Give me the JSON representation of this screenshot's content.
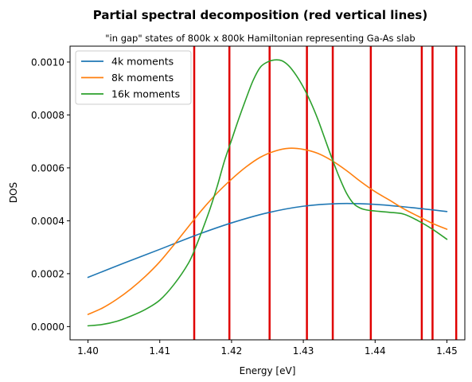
{
  "chart_data": {
    "type": "line",
    "title": "Partial spectral decomposition (red vertical lines)",
    "subtitle": "\"in gap\" states of 800k x 800k Hamiltonian representing Ga-As slab",
    "xlabel": "Energy [eV]",
    "ylabel": "DOS",
    "xlim": [
      1.3975,
      1.4525
    ],
    "ylim": [
      -5e-05,
      0.00106
    ],
    "xticks": [
      1.4,
      1.41,
      1.42,
      1.43,
      1.44,
      1.45
    ],
    "xtick_labels": [
      "1.40",
      "1.41",
      "1.42",
      "1.43",
      "1.44",
      "1.45"
    ],
    "yticks": [
      0,
      0.0002,
      0.0004,
      0.0006,
      0.0008,
      0.001
    ],
    "ytick_labels": [
      "0.0000",
      "0.0002",
      "0.0004",
      "0.0006",
      "0.0008",
      "0.0010"
    ],
    "grid": false,
    "legend_position": "top-left",
    "vertical_lines": {
      "color": "#e00000",
      "x": [
        1.4148,
        1.4197,
        1.4253,
        1.4305,
        1.4341,
        1.4394,
        1.4465,
        1.448,
        1.4513
      ]
    },
    "series": [
      {
        "name": "4k moments",
        "color": "#1f77b4",
        "x": [
          1.4,
          1.405,
          1.41,
          1.415,
          1.42,
          1.425,
          1.43,
          1.435,
          1.44,
          1.445,
          1.45
        ],
        "y": [
          0.000186,
          0.00024,
          0.000292,
          0.000345,
          0.000392,
          0.00043,
          0.000455,
          0.000465,
          0.000462,
          0.00045,
          0.000435
        ]
      },
      {
        "name": "8k moments",
        "color": "#ff7f0e",
        "x": [
          1.4,
          1.402,
          1.404,
          1.406,
          1.408,
          1.41,
          1.412,
          1.414,
          1.416,
          1.418,
          1.42,
          1.422,
          1.424,
          1.426,
          1.428,
          1.43,
          1.432,
          1.434,
          1.436,
          1.438,
          1.44,
          1.442,
          1.444,
          1.446,
          1.448,
          1.45
        ],
        "y": [
          4.6e-05,
          7e-05,
          0.000103,
          0.000143,
          0.00019,
          0.000245,
          0.00031,
          0.000378,
          0.000445,
          0.000505,
          0.000557,
          0.000603,
          0.00064,
          0.000663,
          0.000674,
          0.00067,
          0.000655,
          0.000627,
          0.00059,
          0.000548,
          0.00051,
          0.000478,
          0.000445,
          0.000417,
          0.00039,
          0.000368
        ]
      },
      {
        "name": "16k moments",
        "color": "#2ca02c",
        "x": [
          1.4,
          1.402,
          1.404,
          1.406,
          1.408,
          1.41,
          1.412,
          1.414,
          1.415,
          1.416,
          1.417,
          1.418,
          1.419,
          1.42,
          1.421,
          1.422,
          1.423,
          1.424,
          1.425,
          1.426,
          1.427,
          1.428,
          1.429,
          1.43,
          1.431,
          1.432,
          1.433,
          1.434,
          1.435,
          1.436,
          1.437,
          1.438,
          1.439,
          1.44,
          1.442,
          1.444,
          1.446,
          1.448,
          1.45
        ],
        "y": [
          3e-06,
          8e-06,
          2e-05,
          4e-05,
          6.5e-05,
          0.0001,
          0.00016,
          0.00024,
          0.0003,
          0.00037,
          0.000445,
          0.00053,
          0.000625,
          0.000705,
          0.000785,
          0.00086,
          0.00093,
          0.00098,
          0.001,
          0.001008,
          0.001005,
          0.000985,
          0.00095,
          0.000905,
          0.00085,
          0.000785,
          0.00071,
          0.000635,
          0.000565,
          0.000505,
          0.000465,
          0.000447,
          0.00044,
          0.000437,
          0.000432,
          0.000425,
          0.0004,
          0.000368,
          0.00033
        ]
      }
    ]
  }
}
